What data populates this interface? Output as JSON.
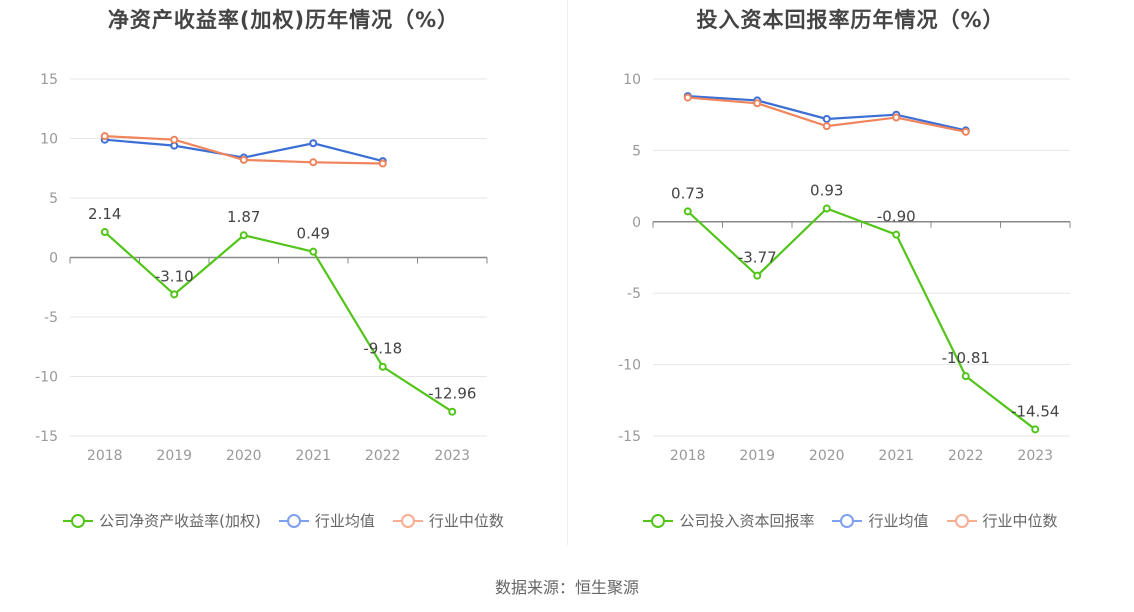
{
  "chart_data": [
    {
      "type": "line",
      "title": "净资产收益率(加权)历年情况（%）",
      "categories": [
        "2018",
        "2019",
        "2020",
        "2021",
        "2022",
        "2023"
      ],
      "ylim": [
        -15,
        15
      ],
      "yticks": [
        15,
        10,
        5,
        0,
        -5,
        -10,
        -15
      ],
      "grid": true,
      "legend_position": "bottom",
      "series": [
        {
          "name": "公司净资产收益率(加权)",
          "color": "#52c41a",
          "values": [
            2.14,
            -3.1,
            1.87,
            0.49,
            -9.18,
            -12.96
          ],
          "labels": [
            "2.14",
            "-3.10",
            "1.87",
            "0.49",
            "-9.18",
            "-12.96"
          ]
        },
        {
          "name": "行业均值",
          "color": "#3b6fd6",
          "values": [
            9.9,
            9.4,
            8.4,
            9.6,
            8.1,
            null
          ]
        },
        {
          "name": "行业中位数",
          "color": "#f0845c",
          "values": [
            10.2,
            9.9,
            8.2,
            8.0,
            7.9,
            null
          ]
        }
      ]
    },
    {
      "type": "line",
      "title": "投入资本回报率历年情况（%）",
      "categories": [
        "2018",
        "2019",
        "2020",
        "2021",
        "2022",
        "2023"
      ],
      "ylim": [
        -15,
        10
      ],
      "yticks": [
        10,
        5,
        0,
        -5,
        -10,
        -15
      ],
      "grid": true,
      "legend_position": "bottom",
      "series": [
        {
          "name": "公司投入资本回报率",
          "color": "#52c41a",
          "values": [
            0.73,
            -3.77,
            0.93,
            -0.9,
            -10.81,
            -14.54
          ],
          "labels": [
            "0.73",
            "-3.77",
            "0.93",
            "-0.90",
            "-10.81",
            "-14.54"
          ]
        },
        {
          "name": "行业均值",
          "color": "#3b6fd6",
          "values": [
            8.8,
            8.5,
            7.2,
            7.5,
            6.4,
            null
          ]
        },
        {
          "name": "行业中位数",
          "color": "#f0845c",
          "values": [
            8.7,
            8.3,
            6.7,
            7.3,
            6.3,
            null
          ]
        }
      ]
    }
  ],
  "legend_left": [
    {
      "label": "公司净资产收益率(加权)",
      "color": "#52c41a"
    },
    {
      "label": "行业均值",
      "color": "#7f9ff0"
    },
    {
      "label": "行业中位数",
      "color": "#f7ae92"
    }
  ],
  "legend_right": [
    {
      "label": "公司投入资本回报率",
      "color": "#52c41a"
    },
    {
      "label": "行业均值",
      "color": "#7f9ff0"
    },
    {
      "label": "行业中位数",
      "color": "#f7ae92"
    }
  ],
  "source": "数据来源：恒生聚源"
}
